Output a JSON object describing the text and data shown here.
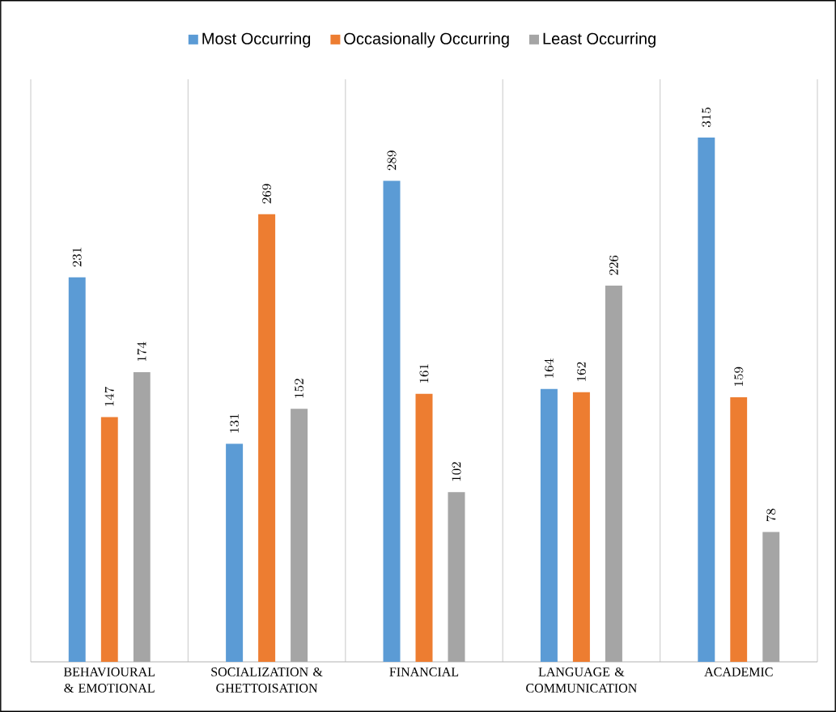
{
  "chart_data": {
    "type": "bar",
    "categories": [
      "BEHAVIOURAL & EMOTIONAL",
      "SOCIALIZATION & GHETTOISATION",
      "FINANCIAL",
      "LANGUAGE & COMMUNICATION",
      "ACADEMIC"
    ],
    "series": [
      {
        "name": "Most Occurring",
        "color": "#5b9bd5",
        "values": [
          231,
          131,
          289,
          164,
          315
        ]
      },
      {
        "name": "Occasionally Occurring",
        "color": "#ed7d31",
        "values": [
          147,
          269,
          161,
          162,
          159
        ]
      },
      {
        "name": "Least Occurring",
        "color": "#a5a5a5",
        "values": [
          174,
          152,
          102,
          226,
          78
        ]
      }
    ],
    "ylim": [
      0,
      350
    ],
    "tick_labels": "x",
    "data_labels": true,
    "grid": "x",
    "legend": "top"
  }
}
